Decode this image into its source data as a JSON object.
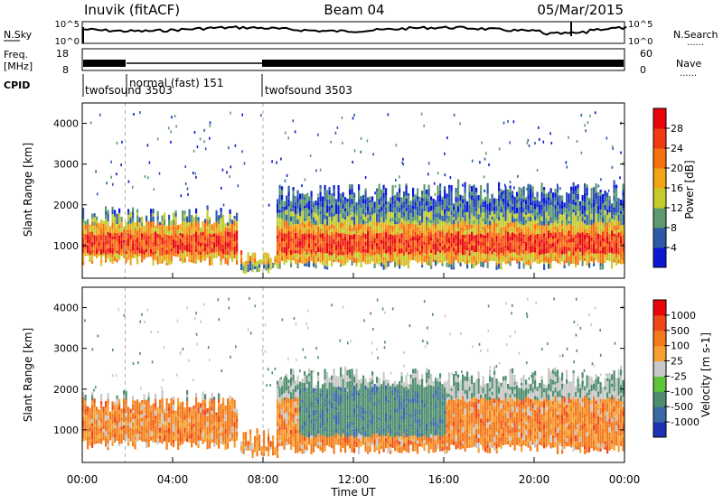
{
  "header": {
    "station": "Inuvik (fitACF)",
    "beam": "Beam 04",
    "date": "05/Mar/2015"
  },
  "status_panels": {
    "nsky_label": "N.Sky",
    "nsky_ticks": [
      "10^5",
      "10^0"
    ],
    "nsearch_label": "N.Search",
    "nsearch_ticks": [
      "10^5",
      "10^0"
    ],
    "freq_label_1": "Freq.",
    "freq_label_2": "[MHz]",
    "freq_ticks": [
      "18",
      "8"
    ],
    "nave_label": "Nave",
    "nave_ticks": [
      "60",
      "0"
    ],
    "cpid_label": "CPID",
    "cpid_segments": [
      {
        "label": "twofsound 3503",
        "start_hour": 0
      },
      {
        "label": "normal (fast) 151",
        "start_hour": 1.9
      },
      {
        "label": "twofsound 3503",
        "start_hour": 8.0
      }
    ],
    "legend_dots": "......"
  },
  "chart_data": [
    {
      "type": "heatmap",
      "name": "power-panel",
      "ylabel": "Slant Range [km]",
      "ylim": [
        200,
        4500
      ],
      "yticks": [
        "1000",
        "2000",
        "3000",
        "4000"
      ],
      "colorbar_label": "Power [dB]",
      "colorbar_ticks": [
        "28",
        "24",
        "20",
        "16",
        "12",
        "8",
        "4"
      ],
      "colors": [
        "#e8060a",
        "#f23a12",
        "#f7700e",
        "#f2a516",
        "#c4cc2c",
        "#5e9a6e",
        "#2c5aa8",
        "#0a18d6"
      ],
      "bands": [
        {
          "x": [
            0,
            6.8
          ],
          "y": [
            500,
            1900
          ]
        },
        {
          "x": [
            7.0,
            8.6
          ],
          "y": [
            300,
            1000
          ]
        },
        {
          "x": [
            8.6,
            24
          ],
          "y": [
            400,
            2500
          ]
        }
      ]
    },
    {
      "type": "heatmap",
      "name": "velocity-panel",
      "xlabel": "Time UT",
      "ylabel": "Slant Range [km]",
      "xlim": [
        0,
        24
      ],
      "xticks": [
        "00:00",
        "04:00",
        "08:00",
        "12:00",
        "16:00",
        "20:00",
        "00:00"
      ],
      "ylim": [
        200,
        4500
      ],
      "yticks": [
        "1000",
        "2000",
        "3000",
        "4000"
      ],
      "colorbar_label": "Velocity [m s-1]",
      "colorbar_ticks": [
        "1000",
        "500",
        "100",
        "25",
        "-25",
        "-100",
        "-500",
        "-1000"
      ],
      "colors": [
        "#1c34b4",
        "#3a6aa6",
        "#4e8e6e",
        "#5ec43c",
        "#c8c8c8",
        "#f5a030",
        "#f37a1a",
        "#f04818",
        "#e8060a"
      ],
      "bands": [
        {
          "x": [
            0,
            6.8
          ],
          "y": [
            500,
            1900
          ]
        },
        {
          "x": [
            7.0,
            8.6
          ],
          "y": [
            300,
            1000
          ]
        },
        {
          "x": [
            8.6,
            24
          ],
          "y": [
            400,
            2500
          ]
        }
      ]
    }
  ]
}
